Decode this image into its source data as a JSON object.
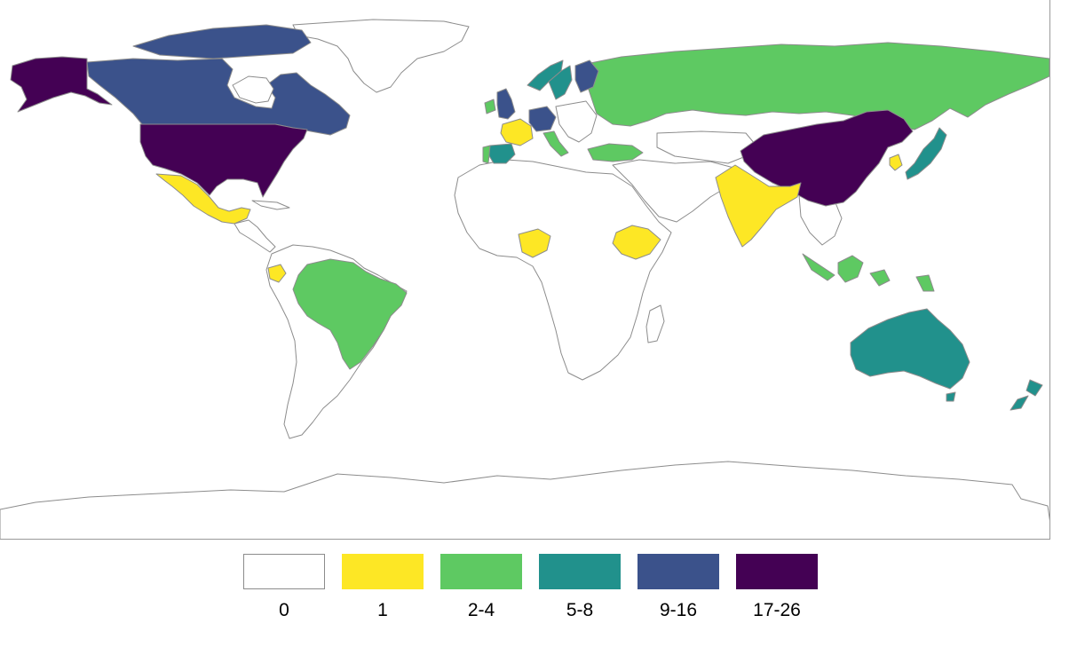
{
  "legend": {
    "items": [
      {
        "label": "0",
        "color": "#ffffff",
        "border": "#8c8c8c"
      },
      {
        "label": "1",
        "color": "#fde725",
        "border": "#fde725"
      },
      {
        "label": "2-4",
        "color": "#5ec962",
        "border": "#5ec962"
      },
      {
        "label": "5-8",
        "color": "#21918c",
        "border": "#21918c"
      },
      {
        "label": "9-16",
        "color": "#3b528b",
        "border": "#3b528b"
      },
      {
        "label": "17-26",
        "color": "#440154",
        "border": "#440154"
      }
    ]
  },
  "regions": [
    {
      "name": "Alaska",
      "class": "17-26"
    },
    {
      "name": "Canada",
      "class": "9-16"
    },
    {
      "name": "Greenland",
      "class": "0"
    },
    {
      "name": "United States",
      "class": "17-26"
    },
    {
      "name": "Mexico",
      "class": "1"
    },
    {
      "name": "Central America",
      "class": "0"
    },
    {
      "name": "Ecuador",
      "class": "1"
    },
    {
      "name": "Brazil",
      "class": "2-4"
    },
    {
      "name": "South America (other)",
      "class": "0"
    },
    {
      "name": "United Kingdom",
      "class": "9-16"
    },
    {
      "name": "Ireland",
      "class": "2-4"
    },
    {
      "name": "Norway",
      "class": "5-8"
    },
    {
      "name": "Sweden",
      "class": "5-8"
    },
    {
      "name": "Finland",
      "class": "9-16"
    },
    {
      "name": "Germany",
      "class": "9-16"
    },
    {
      "name": "France",
      "class": "1"
    },
    {
      "name": "Spain",
      "class": "5-8"
    },
    {
      "name": "Portugal",
      "class": "2-4"
    },
    {
      "name": "Italy",
      "class": "2-4"
    },
    {
      "name": "Turkey",
      "class": "2-4"
    },
    {
      "name": "Russia",
      "class": "2-4"
    },
    {
      "name": "China",
      "class": "17-26"
    },
    {
      "name": "India",
      "class": "1"
    },
    {
      "name": "Japan",
      "class": "5-8"
    },
    {
      "name": "South Korea",
      "class": "1"
    },
    {
      "name": "Nigeria",
      "class": "1"
    },
    {
      "name": "Ethiopia",
      "class": "1"
    },
    {
      "name": "Africa (other)",
      "class": "0"
    },
    {
      "name": "Middle East (other)",
      "class": "0"
    },
    {
      "name": "Indonesia",
      "class": "2-4"
    },
    {
      "name": "Australia",
      "class": "5-8"
    },
    {
      "name": "New Zealand",
      "class": "5-8"
    },
    {
      "name": "Antarctica",
      "class": "0"
    }
  ]
}
